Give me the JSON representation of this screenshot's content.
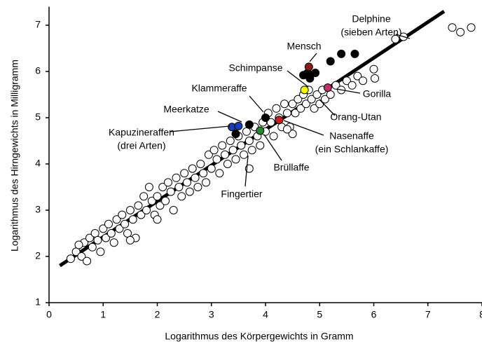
{
  "chart_data": {
    "type": "scatter",
    "x_label": "Logarithmus des Körpergewichts in Gramm",
    "y_label": "Logarithmus des Hirngewichts in Milligramm",
    "xlim": [
      0,
      8
    ],
    "ylim": [
      1,
      7.4
    ],
    "xticks": [
      0,
      1,
      2,
      3,
      4,
      5,
      6,
      7,
      8
    ],
    "yticks": [
      1,
      2,
      3,
      4,
      5,
      6,
      7
    ],
    "trend_line": {
      "color": "#000000",
      "x": [
        0.2,
        7.3
      ],
      "values": [
        1.8,
        7.3
      ]
    },
    "series": [
      {
        "color": "#ffffff",
        "x": [
          0.5,
          0.6,
          0.65,
          0.7,
          0.75,
          0.8,
          0.85,
          0.9,
          0.95,
          1.0,
          1.05,
          1.1,
          1.15,
          1.2,
          1.25,
          1.3,
          1.35,
          1.4,
          1.45,
          1.5,
          1.55,
          1.6,
          1.65,
          1.7,
          1.75,
          1.8,
          1.85,
          1.9,
          1.95,
          2.0,
          2.05,
          2.1,
          2.15,
          2.2,
          2.25,
          2.3,
          2.35,
          2.4,
          2.45,
          2.5,
          2.55,
          2.6,
          2.65,
          2.7,
          2.75,
          2.8,
          2.85,
          2.9,
          2.95,
          3.0,
          3.05,
          3.1,
          3.15,
          3.2,
          3.25,
          3.3,
          3.35,
          3.4,
          3.45,
          3.5,
          3.55,
          3.6,
          3.65,
          3.7,
          3.75,
          3.8,
          3.85,
          3.9,
          3.95,
          4.0,
          4.05,
          4.1,
          4.15,
          4.2,
          4.25,
          4.3,
          4.35,
          4.4,
          4.45,
          4.5,
          4.55,
          4.6,
          4.65,
          4.7,
          4.75,
          4.8,
          4.85,
          4.9,
          4.95,
          5.0,
          5.05,
          5.1,
          5.2,
          5.3,
          5.4,
          5.5,
          5.6,
          5.7,
          5.8,
          6.0,
          6.02,
          6.4,
          6.55,
          7.45,
          7.6,
          7.8,
          0.4,
          0.55,
          4.5,
          4.4,
          3.7,
          1.5,
          2.0
        ],
        "values": [
          2.1,
          2.0,
          2.3,
          1.9,
          2.4,
          2.2,
          2.5,
          2.35,
          2.1,
          2.6,
          2.4,
          2.7,
          2.5,
          2.3,
          2.8,
          2.6,
          2.9,
          2.7,
          2.5,
          3.0,
          2.8,
          2.4,
          3.1,
          2.9,
          3.3,
          3.0,
          3.5,
          3.2,
          2.9,
          3.3,
          3.1,
          3.5,
          3.2,
          3.6,
          3.4,
          3.0,
          3.7,
          3.5,
          3.3,
          3.8,
          3.6,
          3.4,
          3.9,
          3.7,
          3.5,
          4.0,
          3.8,
          3.6,
          4.2,
          3.9,
          4.3,
          4.1,
          3.8,
          4.4,
          4.2,
          4.0,
          4.5,
          4.3,
          4.1,
          4.6,
          4.4,
          4.2,
          4.7,
          4.5,
          4.3,
          4.8,
          4.6,
          4.4,
          4.9,
          4.7,
          5.1,
          4.9,
          4.6,
          5.2,
          5.0,
          4.8,
          5.3,
          5.1,
          4.8,
          5.3,
          5.1,
          5.4,
          5.2,
          5.5,
          5.3,
          5.6,
          5.4,
          5.2,
          5.5,
          5.3,
          5.6,
          5.4,
          5.5,
          5.7,
          5.6,
          5.8,
          5.7,
          5.9,
          5.8,
          6.05,
          5.85,
          6.7,
          6.75,
          6.95,
          6.85,
          6.95,
          1.95,
          2.25,
          4.65,
          4.75,
          3.9,
          2.35,
          2.8
        ]
      },
      {
        "color": "#000000",
        "x": [
          5.2,
          5.4,
          5.65,
          4.7,
          4.82,
          4.92,
          4.78,
          4.0,
          3.7,
          3.45
        ],
        "values": [
          6.22,
          6.38,
          6.38,
          5.92,
          5.85,
          5.97,
          5.97,
          5.0,
          4.85,
          4.65
        ]
      },
      {
        "color": "#8b1a1a",
        "x": [
          4.8
        ],
        "values": [
          6.1
        ]
      },
      {
        "color": "#f5f500",
        "x": [
          4.72
        ],
        "values": [
          5.6
        ]
      },
      {
        "color": "#c0306a",
        "x": [
          5.15
        ],
        "values": [
          5.65
        ]
      },
      {
        "color": "#1c3fb0",
        "x": [
          3.38,
          3.5
        ],
        "values": [
          4.8,
          4.82
        ]
      },
      {
        "color": "#1f8a2e",
        "x": [
          3.9
        ],
        "values": [
          4.72
        ]
      },
      {
        "color": "#c81e1e",
        "x": [
          4.25
        ],
        "values": [
          4.95
        ]
      }
    ],
    "annotations": [
      {
        "lines": [
          "Delphine",
          "(sieben Arten)"
        ]
      },
      {
        "lines": [
          "Mensch"
        ]
      },
      {
        "lines": [
          "Schimpanse"
        ]
      },
      {
        "lines": [
          "Klammeraffe"
        ]
      },
      {
        "lines": [
          "Meerkatze"
        ]
      },
      {
        "lines": [
          "Kapuzineraffen",
          "(drei Arten)"
        ]
      },
      {
        "lines": [
          "Gorilla"
        ]
      },
      {
        "lines": [
          "Orang-Utan"
        ]
      },
      {
        "lines": [
          "Nasenaffe",
          "(ein Schlankaffe)"
        ]
      },
      {
        "lines": [
          "Brüllaffe"
        ]
      },
      {
        "lines": [
          "Fingertier"
        ]
      }
    ]
  }
}
